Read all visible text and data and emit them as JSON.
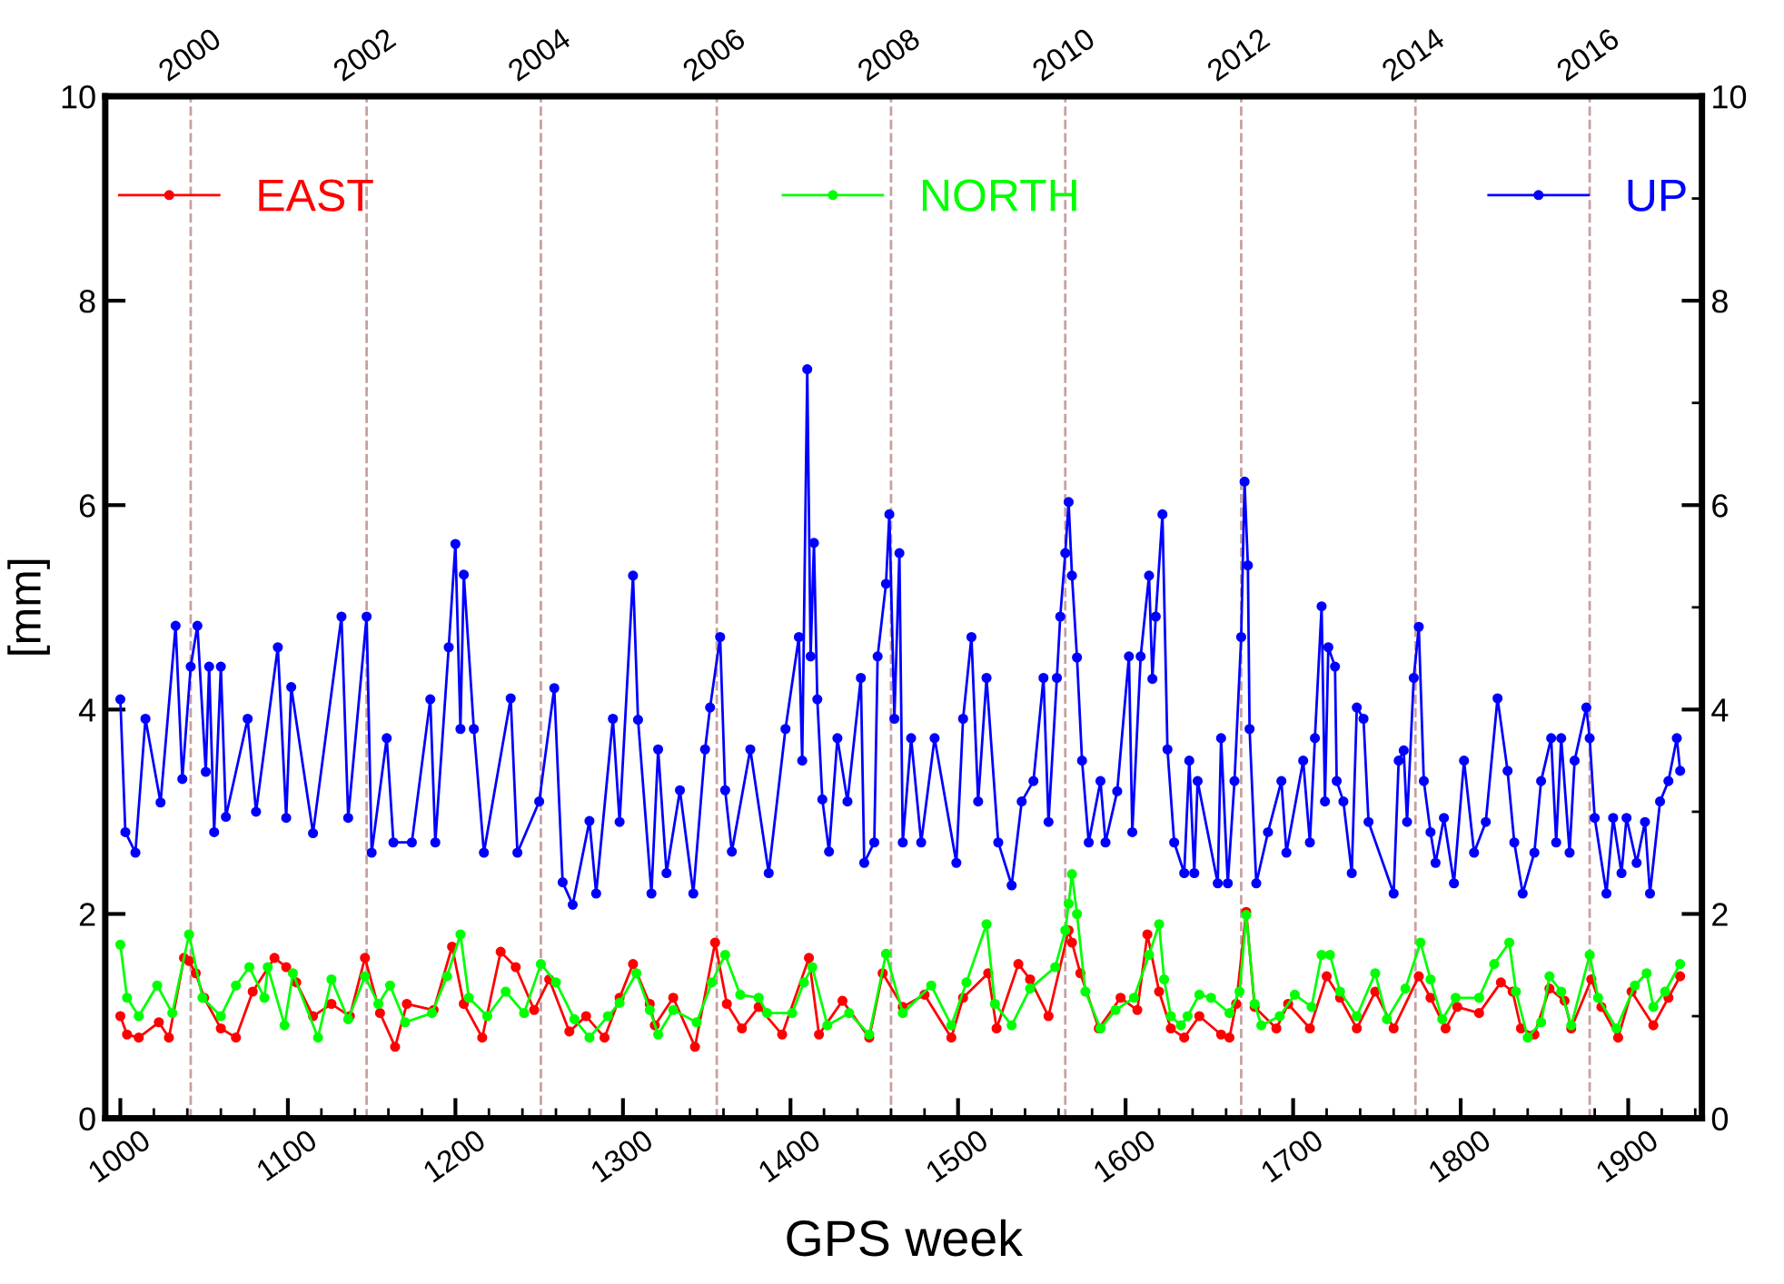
{
  "chart_data": {
    "type": "line",
    "xlabel": "GPS week",
    "ylabel": "[mm]",
    "xlim": [
      991,
      1944
    ],
    "xticks": [
      1000,
      1100,
      1200,
      1300,
      1400,
      1500,
      1600,
      1700,
      1800,
      1900
    ],
    "x2lim": [
      1999.02,
      2017.29
    ],
    "x2ticks": [
      2000,
      2002,
      2004,
      2006,
      2008,
      2010,
      2012,
      2014,
      2016
    ],
    "ylim": [
      0,
      10
    ],
    "yticks": [
      0,
      2,
      4,
      6,
      8,
      10
    ],
    "y2lim": [
      0,
      10
    ],
    "y2ticks": [
      0,
      2,
      4,
      6,
      8,
      10
    ],
    "legend": "top",
    "marker": "circle",
    "line_style": "solid",
    "grid": false,
    "ref_lines": [
      {
        "axis": "x",
        "value": 1042,
        "color": "#c8a0a0",
        "line_style": "dashed"
      },
      {
        "axis": "x",
        "value": 1147,
        "color": "#c8a0a0",
        "line_style": "dashed"
      },
      {
        "axis": "x",
        "value": 1251,
        "color": "#c8a0a0",
        "line_style": "dashed"
      },
      {
        "axis": "x",
        "value": 1356,
        "color": "#c8a0a0",
        "line_style": "dashed"
      },
      {
        "axis": "x",
        "value": 1460,
        "color": "#c8a0a0",
        "line_style": "dashed"
      },
      {
        "axis": "x",
        "value": 1564,
        "color": "#c8a0a0",
        "line_style": "dashed"
      },
      {
        "axis": "x",
        "value": 1669,
        "color": "#c8a0a0",
        "line_style": "dashed"
      },
      {
        "axis": "x",
        "value": 1773,
        "color": "#c8a0a0",
        "line_style": "dashed"
      },
      {
        "axis": "x",
        "value": 1877,
        "color": "#c8a0a0",
        "line_style": "dashed"
      }
    ],
    "series": [
      {
        "name": "EAST",
        "color": "#ff0000",
        "x": [
          1000,
          1004,
          1011,
          1023,
          1029,
          1038,
          1041,
          1045,
          1050,
          1060,
          1069,
          1079,
          1092,
          1099,
          1105,
          1115,
          1126,
          1137,
          1146,
          1155,
          1164,
          1171,
          1187,
          1198,
          1205,
          1216,
          1227,
          1236,
          1247,
          1256,
          1268,
          1278,
          1289,
          1298,
          1306,
          1316,
          1319,
          1330,
          1343,
          1355,
          1362,
          1371,
          1381,
          1395,
          1411,
          1417,
          1431,
          1447,
          1455,
          1467,
          1480,
          1496,
          1503,
          1518,
          1523,
          1536,
          1543,
          1554,
          1566,
          1568,
          1573,
          1584,
          1597,
          1607,
          1613,
          1620,
          1627,
          1635,
          1644,
          1657,
          1662,
          1666,
          1672,
          1677,
          1690,
          1697,
          1710,
          1720,
          1728,
          1738,
          1749,
          1760,
          1775,
          1782,
          1791,
          1798,
          1811,
          1824,
          1831,
          1836,
          1844,
          1853,
          1862,
          1866,
          1878,
          1884,
          1894,
          1902,
          1915,
          1924,
          1931
        ],
        "values": [
          1.0,
          0.82,
          0.79,
          0.94,
          0.79,
          1.57,
          1.54,
          1.42,
          1.18,
          0.88,
          0.79,
          1.24,
          1.57,
          1.48,
          1.33,
          1.0,
          1.12,
          1.0,
          1.57,
          1.03,
          0.7,
          1.12,
          1.06,
          1.68,
          1.12,
          0.79,
          1.63,
          1.48,
          1.06,
          1.36,
          0.85,
          1.0,
          0.79,
          1.18,
          1.51,
          1.12,
          0.91,
          1.18,
          0.7,
          1.72,
          1.12,
          0.88,
          1.09,
          0.82,
          1.57,
          0.82,
          1.15,
          0.79,
          1.42,
          1.09,
          1.21,
          0.79,
          1.18,
          1.42,
          0.88,
          1.51,
          1.36,
          1.0,
          1.84,
          1.72,
          1.42,
          0.88,
          1.18,
          1.06,
          1.8,
          1.24,
          0.88,
          0.79,
          1.0,
          0.82,
          0.79,
          1.12,
          2.02,
          1.09,
          0.88,
          1.12,
          0.88,
          1.39,
          1.18,
          0.88,
          1.24,
          0.88,
          1.39,
          1.18,
          0.88,
          1.09,
          1.03,
          1.33,
          1.24,
          0.88,
          0.82,
          1.27,
          1.15,
          0.88,
          1.36,
          1.09,
          0.79,
          1.24,
          0.91,
          1.18,
          1.39
        ]
      },
      {
        "name": "NORTH",
        "color": "#00ff00",
        "x": [
          1000,
          1004,
          1011,
          1022,
          1031,
          1041,
          1049,
          1060,
          1069,
          1077,
          1086,
          1088,
          1098,
          1103,
          1118,
          1126,
          1136,
          1146,
          1154,
          1161,
          1170,
          1186,
          1195,
          1203,
          1208,
          1219,
          1230,
          1241,
          1251,
          1260,
          1271,
          1280,
          1291,
          1298,
          1308,
          1316,
          1321,
          1330,
          1344,
          1353,
          1361,
          1370,
          1381,
          1386,
          1401,
          1408,
          1413,
          1422,
          1435,
          1447,
          1457,
          1467,
          1484,
          1496,
          1505,
          1517,
          1522,
          1532,
          1543,
          1558,
          1564,
          1566,
          1568,
          1571,
          1576,
          1585,
          1594,
          1605,
          1614,
          1620,
          1623,
          1627,
          1633,
          1637,
          1644,
          1651,
          1662,
          1668,
          1672,
          1677,
          1681,
          1692,
          1701,
          1711,
          1717,
          1722,
          1728,
          1738,
          1749,
          1756,
          1767,
          1776,
          1782,
          1789,
          1797,
          1811,
          1820,
          1829,
          1833,
          1840,
          1848,
          1853,
          1860,
          1866,
          1877,
          1882,
          1893,
          1904,
          1911,
          1915,
          1922,
          1931
        ],
        "values": [
          1.7,
          1.18,
          1.0,
          1.3,
          1.03,
          1.8,
          1.18,
          1.0,
          1.3,
          1.48,
          1.18,
          1.48,
          0.91,
          1.42,
          0.79,
          1.36,
          0.97,
          1.39,
          1.12,
          1.3,
          0.94,
          1.03,
          1.39,
          1.8,
          1.18,
          1.0,
          1.24,
          1.03,
          1.51,
          1.33,
          0.97,
          0.79,
          1.0,
          1.13,
          1.42,
          1.06,
          0.82,
          1.06,
          0.94,
          1.33,
          1.6,
          1.21,
          1.18,
          1.03,
          1.03,
          1.33,
          1.48,
          0.91,
          1.03,
          0.82,
          1.61,
          1.03,
          1.3,
          0.91,
          1.33,
          1.9,
          1.12,
          0.91,
          1.27,
          1.48,
          1.84,
          2.1,
          2.39,
          2.0,
          1.24,
          0.88,
          1.06,
          1.18,
          1.6,
          1.9,
          1.36,
          1.0,
          0.91,
          1.0,
          1.21,
          1.18,
          1.03,
          1.24,
          1.99,
          1.12,
          0.91,
          1.0,
          1.21,
          1.09,
          1.6,
          1.6,
          1.24,
          1.0,
          1.42,
          0.97,
          1.27,
          1.72,
          1.36,
          0.97,
          1.18,
          1.18,
          1.51,
          1.72,
          1.24,
          0.79,
          0.94,
          1.39,
          1.24,
          0.91,
          1.6,
          1.18,
          0.88,
          1.3,
          1.42,
          1.09,
          1.24,
          1.51
        ]
      },
      {
        "name": "UP",
        "color": "#0000ff",
        "x": [
          1000,
          1003,
          1009,
          1015,
          1024,
          1033,
          1037,
          1042,
          1046,
          1051,
          1053,
          1056,
          1060,
          1063,
          1076,
          1081,
          1094,
          1099,
          1102,
          1115,
          1132,
          1136,
          1147,
          1150,
          1159,
          1163,
          1174,
          1185,
          1188,
          1196,
          1200,
          1203,
          1205,
          1211,
          1217,
          1233,
          1237,
          1250,
          1259,
          1264,
          1270,
          1280,
          1284,
          1294,
          1298,
          1306,
          1309,
          1317,
          1321,
          1326,
          1334,
          1342,
          1349,
          1352,
          1358,
          1361,
          1365,
          1376,
          1387,
          1397,
          1405,
          1407,
          1410,
          1412,
          1414,
          1416,
          1419,
          1423,
          1428,
          1434,
          1442,
          1444,
          1450,
          1452,
          1457,
          1459,
          1462,
          1465,
          1467,
          1472,
          1478,
          1486,
          1499,
          1503,
          1508,
          1512,
          1517,
          1524,
          1532,
          1538,
          1545,
          1551,
          1554,
          1559,
          1561,
          1564,
          1566,
          1568,
          1571,
          1574,
          1578,
          1585,
          1588,
          1595,
          1602,
          1604,
          1609,
          1614,
          1616,
          1618,
          1622,
          1625,
          1629,
          1635,
          1638,
          1641,
          1643,
          1655,
          1657,
          1661,
          1665,
          1669,
          1671,
          1673,
          1674,
          1678,
          1685,
          1693,
          1696,
          1706,
          1710,
          1713,
          1717,
          1719,
          1721,
          1725,
          1726,
          1730,
          1735,
          1738,
          1742,
          1745,
          1760,
          1763,
          1766,
          1768,
          1772,
          1775,
          1778,
          1782,
          1785,
          1790,
          1796,
          1802,
          1808,
          1815,
          1822,
          1828,
          1832,
          1837,
          1844,
          1848,
          1854,
          1857,
          1860,
          1865,
          1868,
          1875,
          1877,
          1880,
          1887,
          1891,
          1896,
          1899,
          1905,
          1910,
          1913,
          1919,
          1924,
          1929,
          1931
        ],
        "values": [
          4.1,
          2.8,
          2.6,
          3.91,
          3.09,
          4.82,
          3.32,
          4.42,
          4.82,
          3.39,
          4.42,
          2.8,
          4.42,
          2.95,
          3.91,
          3.0,
          4.61,
          2.94,
          4.22,
          2.79,
          4.91,
          2.94,
          4.91,
          2.6,
          3.72,
          2.7,
          2.7,
          4.1,
          2.7,
          4.61,
          5.62,
          3.81,
          5.32,
          3.81,
          2.6,
          4.11,
          2.6,
          3.1,
          4.21,
          2.31,
          2.09,
          2.91,
          2.2,
          3.91,
          2.9,
          5.31,
          3.9,
          2.2,
          3.61,
          2.4,
          3.21,
          2.2,
          3.61,
          4.02,
          4.71,
          3.21,
          2.61,
          3.61,
          2.4,
          3.81,
          4.71,
          3.5,
          7.33,
          4.52,
          5.63,
          4.1,
          3.12,
          2.61,
          3.72,
          3.1,
          4.31,
          2.5,
          2.7,
          4.52,
          5.23,
          5.91,
          3.91,
          5.53,
          2.7,
          3.72,
          2.7,
          3.72,
          2.5,
          3.91,
          4.71,
          3.1,
          4.31,
          2.7,
          2.28,
          3.1,
          3.3,
          4.31,
          2.9,
          4.31,
          4.91,
          5.53,
          6.03,
          5.31,
          4.51,
          3.5,
          2.7,
          3.3,
          2.7,
          3.2,
          4.52,
          2.8,
          4.52,
          5.31,
          4.3,
          4.91,
          5.91,
          3.61,
          2.7,
          2.4,
          3.5,
          2.4,
          3.3,
          2.3,
          3.72,
          2.3,
          3.3,
          4.71,
          6.23,
          5.41,
          3.81,
          2.3,
          2.8,
          3.3,
          2.6,
          3.5,
          2.7,
          3.72,
          5.01,
          3.1,
          4.61,
          4.42,
          3.3,
          3.1,
          2.4,
          4.02,
          3.91,
          2.9,
          2.2,
          3.5,
          3.6,
          2.9,
          4.31,
          4.81,
          3.3,
          2.8,
          2.5,
          2.94,
          2.3,
          3.5,
          2.6,
          2.9,
          4.11,
          3.4,
          2.7,
          2.2,
          2.6,
          3.3,
          3.72,
          2.7,
          3.72,
          2.6,
          3.5,
          4.02,
          3.72,
          2.94,
          2.2,
          2.94,
          2.4,
          2.94,
          2.5,
          2.9,
          2.2,
          3.1,
          3.3,
          3.72,
          3.4
        ]
      }
    ]
  }
}
